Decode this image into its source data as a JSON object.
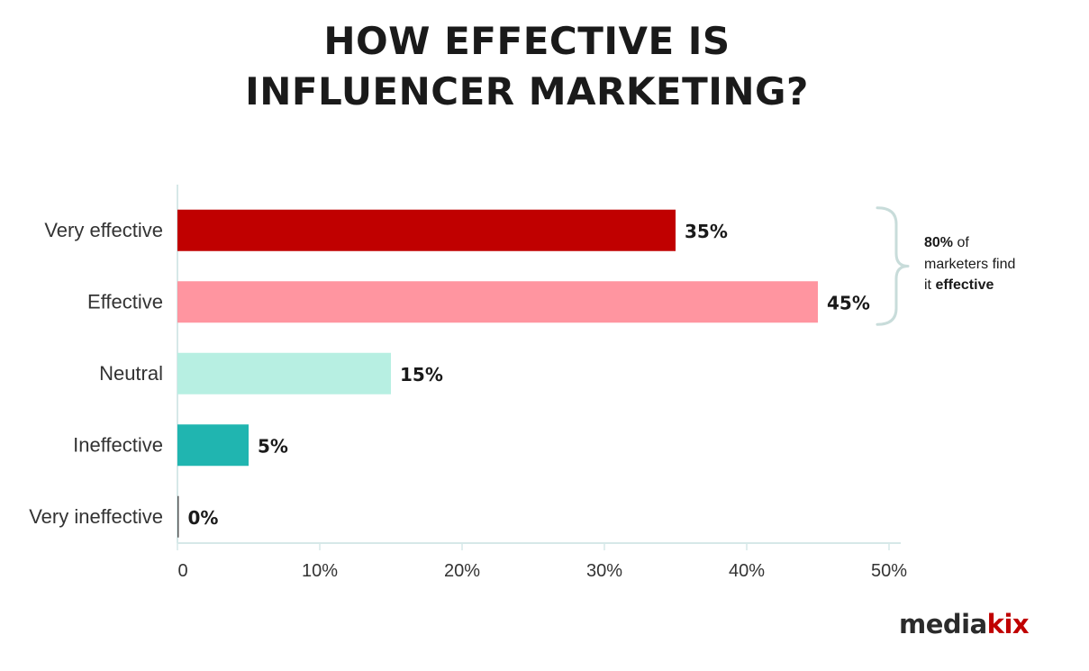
{
  "title_lines": [
    "HOW EFFECTIVE IS",
    "INFLUENCER MARKETING?"
  ],
  "chart_data": {
    "type": "bar",
    "orientation": "horizontal",
    "title": "HOW EFFECTIVE IS INFLUENCER MARKETING?",
    "categories": [
      "Very effective",
      "Effective",
      "Neutral",
      "Ineffective",
      "Very ineffective"
    ],
    "values": [
      35,
      45,
      15,
      5,
      0
    ],
    "value_labels": [
      "35%",
      "45%",
      "15%",
      "5%",
      "0%"
    ],
    "colors": [
      "#c00000",
      "#ff95a0",
      "#b7efe2",
      "#20b5b0",
      "#555555"
    ],
    "xlim": [
      0,
      50
    ],
    "x_ticks": [
      0,
      10,
      20,
      30,
      40,
      50
    ],
    "x_tick_labels": [
      "0",
      "10%",
      "20%",
      "30%",
      "40%",
      "50%"
    ],
    "xlabel": "",
    "ylabel": "",
    "grid": false,
    "legend": "none",
    "annotation": {
      "bracket_over": [
        "Very effective",
        "Effective"
      ],
      "lead": "80%",
      "middle": " of marketers find it ",
      "emphasis": "effective"
    }
  },
  "logo": {
    "part1": "media",
    "part2": "kix"
  },
  "colors": {
    "axis": "#d6e8e8",
    "bracket": "#c8dcda"
  }
}
